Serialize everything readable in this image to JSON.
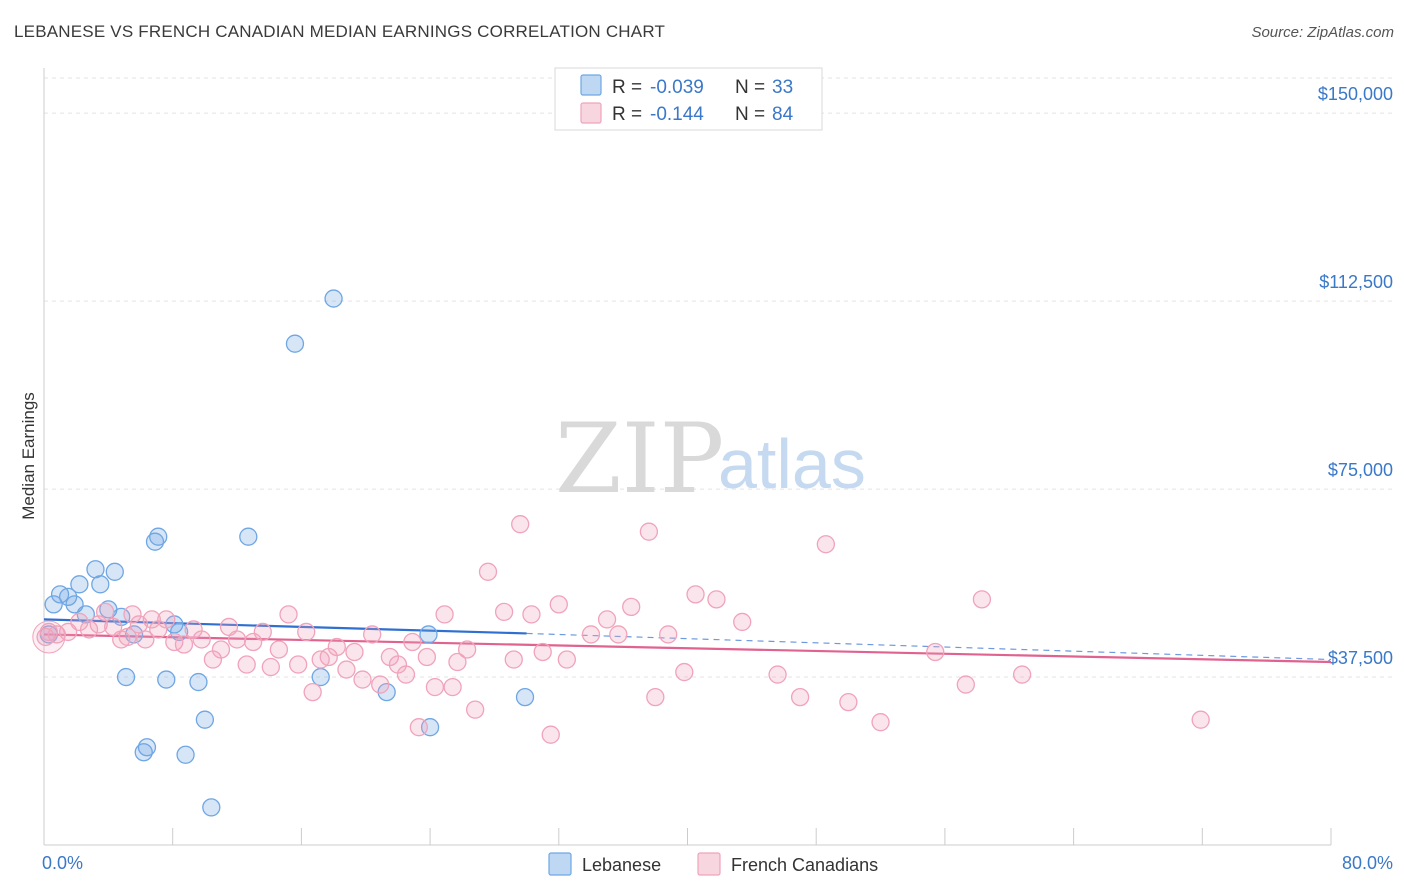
{
  "title": "LEBANESE VS FRENCH CANADIAN MEDIAN EARNINGS CORRELATION CHART",
  "source": "Source: ZipAtlas.com",
  "watermark": {
    "zip": "ZIP",
    "atlas": "atlas"
  },
  "colors": {
    "blue": "#6fa6e4",
    "blue_line": "#2f6fd0",
    "pink": "#f0a3bb",
    "pink_line": "#e0628f",
    "tick_text": "#3a78c8"
  },
  "legend": {
    "rows": [
      {
        "r_label": "R =",
        "r_value": "-0.039",
        "n_label": "N =",
        "n_value": "33"
      },
      {
        "r_label": "R =",
        "r_value": "-0.144",
        "n_label": "N =",
        "n_value": "84"
      }
    ]
  },
  "chart_data": {
    "type": "scatter",
    "ylabel": "Median Earnings",
    "xlim": [
      0,
      80
    ],
    "ylim": [
      4000,
      157000
    ],
    "x_tick_labels": [
      "0.0%",
      "80.0%"
    ],
    "y_ticks": [
      {
        "value": 37500,
        "label": "$37,500"
      },
      {
        "value": 75000,
        "label": "$75,000"
      },
      {
        "value": 112500,
        "label": "$112,500"
      },
      {
        "value": 150000,
        "label": "$150,000"
      }
    ],
    "grid": true,
    "series": [
      {
        "name": "Lebanese",
        "points": [
          [
            0.3,
            46000
          ],
          [
            0.6,
            52000
          ],
          [
            1.0,
            54000
          ],
          [
            1.5,
            53500
          ],
          [
            1.9,
            52000
          ],
          [
            2.2,
            56000
          ],
          [
            2.6,
            50000
          ],
          [
            3.2,
            59000
          ],
          [
            3.5,
            56000
          ],
          [
            4.0,
            51000
          ],
          [
            4.4,
            58500
          ],
          [
            4.8,
            49500
          ],
          [
            5.1,
            37500
          ],
          [
            5.6,
            46000
          ],
          [
            6.2,
            22500
          ],
          [
            6.4,
            23500
          ],
          [
            6.9,
            64500
          ],
          [
            7.1,
            65500
          ],
          [
            7.6,
            37000
          ],
          [
            8.1,
            48000
          ],
          [
            8.4,
            46500
          ],
          [
            8.8,
            22000
          ],
          [
            9.6,
            36500
          ],
          [
            10.0,
            29000
          ],
          [
            10.4,
            11500
          ],
          [
            12.7,
            65500
          ],
          [
            15.6,
            104000
          ],
          [
            17.2,
            37500
          ],
          [
            18.0,
            113000
          ],
          [
            21.3,
            34500
          ],
          [
            23.9,
            46000
          ],
          [
            24.0,
            27500
          ],
          [
            29.9,
            33500
          ]
        ],
        "trend": {
          "x": [
            0,
            30,
            80
          ],
          "y": [
            49000,
            46200,
            41000
          ]
        }
      },
      {
        "name": "French Canadians",
        "points": [
          [
            0.1,
            45500
          ],
          [
            0.3,
            46500
          ],
          [
            0.8,
            46000
          ],
          [
            1.5,
            46500
          ],
          [
            2.2,
            48500
          ],
          [
            2.8,
            47000
          ],
          [
            3.4,
            48000
          ],
          [
            3.8,
            50500
          ],
          [
            4.3,
            47500
          ],
          [
            4.8,
            45000
          ],
          [
            5.2,
            45500
          ],
          [
            5.5,
            50000
          ],
          [
            5.9,
            48000
          ],
          [
            6.3,
            45000
          ],
          [
            6.7,
            49000
          ],
          [
            7.1,
            47000
          ],
          [
            7.6,
            49000
          ],
          [
            8.1,
            44500
          ],
          [
            8.7,
            44000
          ],
          [
            9.3,
            47000
          ],
          [
            9.8,
            45000
          ],
          [
            10.5,
            41000
          ],
          [
            11.0,
            43000
          ],
          [
            11.5,
            47500
          ],
          [
            12.0,
            45000
          ],
          [
            12.6,
            40000
          ],
          [
            13.0,
            44500
          ],
          [
            13.6,
            46500
          ],
          [
            14.1,
            39500
          ],
          [
            14.6,
            43000
          ],
          [
            15.2,
            50000
          ],
          [
            15.8,
            40000
          ],
          [
            16.3,
            46500
          ],
          [
            16.7,
            34500
          ],
          [
            17.2,
            41000
          ],
          [
            17.7,
            41500
          ],
          [
            18.2,
            43500
          ],
          [
            18.8,
            39000
          ],
          [
            19.3,
            42500
          ],
          [
            19.8,
            37000
          ],
          [
            20.4,
            46000
          ],
          [
            20.9,
            36000
          ],
          [
            21.5,
            41500
          ],
          [
            22.0,
            40000
          ],
          [
            22.5,
            38000
          ],
          [
            22.9,
            44500
          ],
          [
            23.3,
            27500
          ],
          [
            23.8,
            41500
          ],
          [
            24.3,
            35500
          ],
          [
            24.9,
            50000
          ],
          [
            25.4,
            35500
          ],
          [
            25.7,
            40500
          ],
          [
            26.3,
            43000
          ],
          [
            26.8,
            31000
          ],
          [
            27.6,
            58500
          ],
          [
            28.6,
            50500
          ],
          [
            29.2,
            41000
          ],
          [
            29.6,
            68000
          ],
          [
            30.3,
            50000
          ],
          [
            31.0,
            42500
          ],
          [
            31.5,
            26000
          ],
          [
            32.0,
            52000
          ],
          [
            32.5,
            41000
          ],
          [
            34.0,
            46000
          ],
          [
            35.0,
            49000
          ],
          [
            35.7,
            46000
          ],
          [
            36.5,
            51500
          ],
          [
            37.6,
            66500
          ],
          [
            38.0,
            33500
          ],
          [
            38.8,
            46000
          ],
          [
            39.8,
            38500
          ],
          [
            40.5,
            54000
          ],
          [
            41.8,
            53000
          ],
          [
            43.4,
            48500
          ],
          [
            45.6,
            38000
          ],
          [
            47.0,
            33500
          ],
          [
            48.6,
            64000
          ],
          [
            50.0,
            32500
          ],
          [
            52.0,
            28500
          ],
          [
            55.4,
            42500
          ],
          [
            57.3,
            36000
          ],
          [
            58.3,
            53000
          ],
          [
            60.8,
            38000
          ],
          [
            71.9,
            29000
          ]
        ],
        "trend": {
          "x": [
            0,
            80
          ],
          "y": [
            46000,
            40500
          ]
        }
      }
    ]
  }
}
